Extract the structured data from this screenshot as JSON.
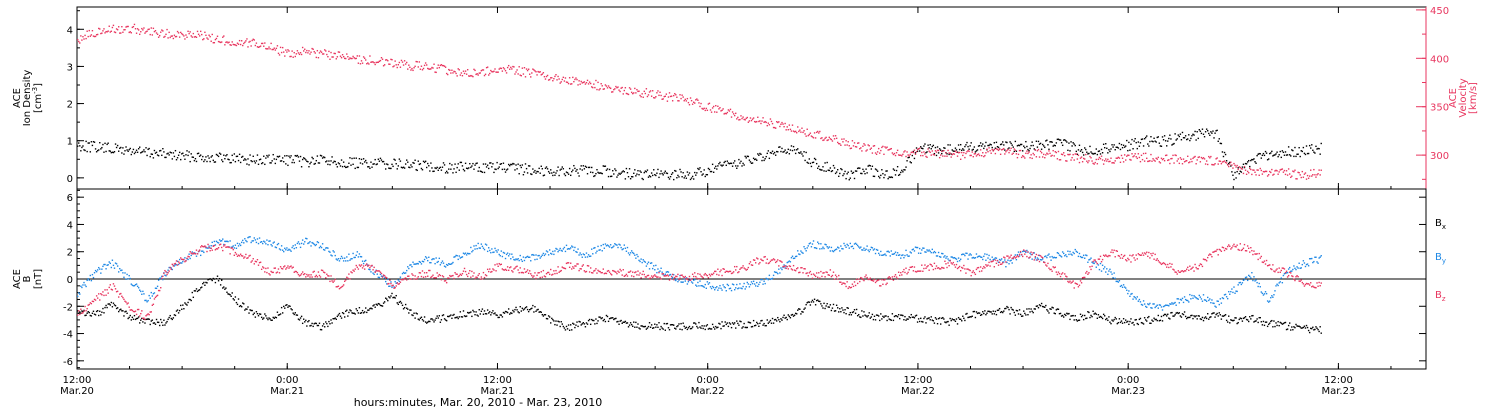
{
  "chart_data": {
    "type": "scatter",
    "xlabel": "hours:minutes, Mar. 20, 2010 - Mar. 23, 2010",
    "x_ticks": [
      {
        "hours": 0,
        "time": "12:00",
        "date": "Mar.20"
      },
      {
        "hours": 12,
        "time": "0:00",
        "date": "Mar.21"
      },
      {
        "hours": 24,
        "time": "12:00",
        "date": "Mar.21"
      },
      {
        "hours": 36,
        "time": "0:00",
        "date": "Mar.22"
      },
      {
        "hours": 48,
        "time": "12:00",
        "date": "Mar.22"
      },
      {
        "hours": 60,
        "time": "0:00",
        "date": "Mar.23"
      },
      {
        "hours": 72,
        "time": "12:00",
        "date": "Mar.23"
      }
    ],
    "x_range_hours": [
      0,
      77
    ],
    "panels": [
      {
        "id": "plasma",
        "left_axis": {
          "label_lines": [
            "ACE",
            "Ion Density"
          ],
          "unit_main": "[cm",
          "unit_sup": "-3",
          "unit_close": "]",
          "ylim": [
            -0.3,
            4.6
          ],
          "ticks": [
            "0",
            "1",
            "2",
            "3",
            "4"
          ],
          "color": "#000000"
        },
        "right_axis": {
          "label_lines": [
            "ACE",
            "Velocity"
          ],
          "unit": "[km/s]",
          "ylim": [
            265,
            453
          ],
          "ticks": [
            "300",
            "350",
            "400",
            "450"
          ],
          "color": "#e8365f"
        },
        "series": [
          {
            "axis": "left",
            "color": "#000000",
            "x": [
              0,
              1,
              2,
              3,
              4,
              5,
              6,
              7,
              8,
              9,
              10,
              11,
              12,
              13,
              14,
              15,
              16,
              17,
              18,
              19,
              20,
              21,
              22,
              23,
              24,
              25,
              26,
              27,
              28,
              29,
              30,
              31,
              32,
              33,
              34,
              35,
              36,
              37,
              38,
              39,
              40,
              41,
              42,
              43,
              44,
              45,
              46,
              47,
              48,
              49,
              50,
              51,
              52,
              53,
              54,
              55,
              56,
              57,
              58,
              59,
              60,
              61,
              62,
              63,
              64,
              65,
              66,
              67,
              68,
              69,
              70,
              71
            ],
            "y": [
              0.9,
              0.85,
              0.8,
              0.75,
              0.7,
              0.65,
              0.6,
              0.6,
              0.55,
              0.55,
              0.5,
              0.5,
              0.5,
              0.45,
              0.5,
              0.45,
              0.4,
              0.4,
              0.4,
              0.35,
              0.35,
              0.3,
              0.3,
              0.3,
              0.3,
              0.25,
              0.25,
              0.2,
              0.2,
              0.2,
              0.2,
              0.15,
              0.1,
              0.1,
              0.1,
              0.1,
              0.2,
              0.35,
              0.45,
              0.55,
              0.7,
              0.8,
              0.4,
              0.3,
              0.05,
              0.25,
              0.1,
              0.2,
              0.8,
              0.75,
              0.8,
              0.85,
              0.9,
              0.9,
              0.85,
              0.9,
              0.95,
              0.8,
              0.75,
              0.85,
              0.9,
              1.0,
              1.0,
              1.1,
              1.2,
              1.2,
              0.05,
              0.5,
              0.6,
              0.7,
              0.75,
              0.8
            ]
          },
          {
            "axis": "right",
            "color": "#e8365f",
            "x": [
              0,
              1,
              2,
              3,
              4,
              5,
              6,
              7,
              8,
              9,
              10,
              11,
              12,
              13,
              14,
              15,
              16,
              17,
              18,
              19,
              20,
              21,
              22,
              23,
              24,
              25,
              26,
              27,
              28,
              29,
              30,
              31,
              32,
              33,
              34,
              35,
              36,
              37,
              38,
              39,
              40,
              41,
              42,
              43,
              44,
              45,
              46,
              47,
              48,
              49,
              50,
              51,
              52,
              53,
              54,
              55,
              56,
              57,
              58,
              59,
              60,
              61,
              62,
              63,
              64,
              65,
              66,
              67,
              68,
              69,
              70,
              71
            ],
            "y": [
              420,
              428,
              430,
              432,
              428,
              426,
              425,
              424,
              420,
              418,
              416,
              413,
              405,
              408,
              405,
              403,
              400,
              398,
              396,
              393,
              392,
              389,
              386,
              385,
              390,
              388,
              385,
              380,
              378,
              375,
              372,
              368,
              366,
              363,
              360,
              356,
              350,
              346,
              340,
              336,
              331,
              327,
              322,
              318,
              312,
              308,
              305,
              302,
              304,
              302,
              301,
              301,
              305,
              304,
              302,
              302,
              300,
              298,
              296,
              296,
              298,
              299,
              297,
              296,
              296,
              294,
              288,
              284,
              283,
              282,
              280,
              282
            ]
          }
        ]
      },
      {
        "id": "field",
        "left_axis": {
          "label_lines": [
            "ACE",
            "B"
          ],
          "unit": "[nT]",
          "ylim": [
            -6.6,
            6.6
          ],
          "ticks": [
            "-6",
            "-4",
            "-2",
            "0",
            "2",
            "4",
            "6"
          ],
          "color": "#000000"
        },
        "zero_line": true,
        "series": [
          {
            "name": "B",
            "sub": "x",
            "color": "#000000",
            "x": [
              0,
              1,
              2,
              3,
              4,
              5,
              6,
              7,
              8,
              9,
              10,
              11,
              12,
              13,
              14,
              15,
              16,
              17,
              18,
              19,
              20,
              21,
              22,
              23,
              24,
              25,
              26,
              27,
              28,
              29,
              30,
              31,
              32,
              33,
              34,
              35,
              36,
              37,
              38,
              39,
              40,
              41,
              42,
              43,
              44,
              45,
              46,
              47,
              48,
              49,
              50,
              51,
              52,
              53,
              54,
              55,
              56,
              57,
              58,
              59,
              60,
              61,
              62,
              63,
              64,
              65,
              66,
              67,
              68,
              69,
              70,
              71
            ],
            "y": [
              -2.2,
              -2.6,
              -1.8,
              -2.8,
              -3.0,
              -3.2,
              -2.0,
              -0.5,
              0.1,
              -1.5,
              -2.5,
              -2.8,
              -2.0,
              -3.2,
              -3.5,
              -2.6,
              -2.3,
              -2.0,
              -1.2,
              -2.4,
              -3.0,
              -2.8,
              -2.5,
              -2.4,
              -2.6,
              -2.2,
              -2.1,
              -3.0,
              -3.5,
              -3.2,
              -2.8,
              -3.2,
              -3.4,
              -3.4,
              -3.5,
              -3.4,
              -3.4,
              -3.3,
              -3.3,
              -3.2,
              -3.0,
              -2.5,
              -1.6,
              -2.0,
              -2.3,
              -2.6,
              -2.8,
              -2.7,
              -2.9,
              -3.0,
              -3.1,
              -2.6,
              -2.4,
              -2.2,
              -2.5,
              -2.0,
              -2.4,
              -2.8,
              -2.5,
              -3.0,
              -3.1,
              -3.0,
              -2.8,
              -2.5,
              -2.9,
              -2.6,
              -3.0,
              -2.8,
              -3.2,
              -3.4,
              -3.6,
              -3.7
            ]
          },
          {
            "name": "B",
            "sub": "y",
            "color": "#1e88e5",
            "x": [
              0,
              1,
              2,
              3,
              4,
              5,
              6,
              7,
              8,
              9,
              10,
              11,
              12,
              13,
              14,
              15,
              16,
              17,
              18,
              19,
              20,
              21,
              22,
              23,
              24,
              25,
              26,
              27,
              28,
              29,
              30,
              31,
              32,
              33,
              34,
              35,
              36,
              37,
              38,
              39,
              40,
              41,
              42,
              43,
              44,
              45,
              46,
              47,
              48,
              49,
              50,
              51,
              52,
              53,
              54,
              55,
              56,
              57,
              58,
              59,
              60,
              61,
              62,
              63,
              64,
              65,
              66,
              67,
              68,
              69,
              70,
              71
            ],
            "y": [
              -1.0,
              0.5,
              1.2,
              0.0,
              -1.5,
              0.5,
              1.5,
              2.0,
              2.8,
              2.5,
              3.0,
              2.6,
              2.2,
              2.8,
              2.4,
              1.5,
              1.8,
              0.5,
              -0.5,
              1.0,
              1.5,
              1.2,
              1.8,
              2.5,
              2.0,
              1.5,
              1.6,
              2.0,
              2.3,
              1.8,
              2.4,
              2.5,
              1.5,
              0.8,
              0.2,
              -0.2,
              -0.4,
              -0.6,
              -0.5,
              -0.2,
              0.5,
              1.8,
              2.6,
              2.2,
              2.5,
              2.3,
              2.0,
              1.8,
              2.2,
              2.0,
              1.5,
              1.8,
              1.6,
              1.2,
              2.0,
              1.5,
              1.8,
              2.0,
              1.2,
              0.5,
              -1.0,
              -1.8,
              -2.0,
              -1.5,
              -1.2,
              -1.8,
              -0.8,
              0.3,
              -1.5,
              0.5,
              1.2,
              1.5
            ]
          },
          {
            "name": "B",
            "sub": "z",
            "color": "#e8365f",
            "x": [
              0,
              1,
              2,
              3,
              4,
              5,
              6,
              7,
              8,
              9,
              10,
              11,
              12,
              13,
              14,
              15,
              16,
              17,
              18,
              19,
              20,
              21,
              22,
              23,
              24,
              25,
              26,
              27,
              28,
              29,
              30,
              31,
              32,
              33,
              34,
              35,
              36,
              37,
              38,
              39,
              40,
              41,
              42,
              43,
              44,
              45,
              46,
              47,
              48,
              49,
              50,
              51,
              52,
              53,
              54,
              55,
              56,
              57,
              58,
              59,
              60,
              61,
              62,
              63,
              64,
              65,
              66,
              67,
              68,
              69,
              70,
              71
            ],
            "y": [
              -2.5,
              -1.5,
              -0.5,
              -2.0,
              -2.8,
              0.5,
              1.5,
              2.2,
              2.5,
              2.0,
              1.5,
              0.5,
              1.0,
              0.2,
              0.5,
              -0.5,
              1.0,
              0.8,
              -0.5,
              0.2,
              0.5,
              0.0,
              0.6,
              0.2,
              1.0,
              0.8,
              0.3,
              0.5,
              1.0,
              0.8,
              0.6,
              0.5,
              0.4,
              0.3,
              0.2,
              0.2,
              0.4,
              0.6,
              0.8,
              1.5,
              1.2,
              0.8,
              0.3,
              0.5,
              -0.5,
              0.2,
              -0.3,
              0.5,
              0.8,
              1.0,
              1.2,
              0.5,
              1.0,
              1.5,
              2.0,
              1.5,
              0.5,
              -0.5,
              1.2,
              2.0,
              1.5,
              2.0,
              1.2,
              0.5,
              1.0,
              2.0,
              2.5,
              2.2,
              1.0,
              0.5,
              -0.2,
              -0.5
            ]
          }
        ]
      }
    ]
  }
}
